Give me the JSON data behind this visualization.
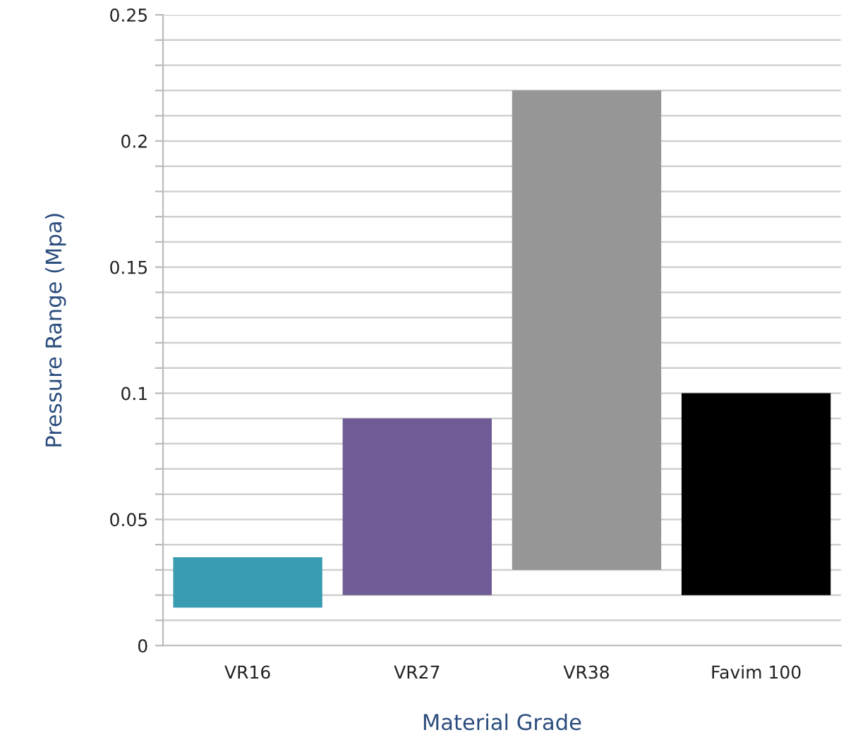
{
  "chart_data": {
    "type": "bar",
    "xlabel": "Material Grade",
    "ylabel": "Pressure Range (Mpa)",
    "categories": [
      "VR16",
      "VR27",
      "VR38",
      "Favim 100"
    ],
    "values": [
      0.02,
      0.07,
      0.19,
      0.08
    ],
    "base": [
      0.015,
      0.02,
      0.03,
      0.02
    ],
    "colors": [
      "#3a9cb2",
      "#6f5c96",
      "#969696",
      "#000000"
    ],
    "ylim": [
      0,
      0.25
    ],
    "yticks": [
      0,
      {
        "value": 0.01,
        "label": null
      },
      {
        "value": 0.02,
        "label": null
      },
      {
        "value": 0.03,
        "label": null
      },
      {
        "value": 0.04,
        "label": null
      },
      0.05,
      {
        "value": 0.06,
        "label": null
      },
      {
        "value": 0.07,
        "label": null
      },
      {
        "value": 0.08,
        "label": null
      },
      {
        "value": 0.09,
        "label": null
      },
      0.1,
      {
        "value": 0.11,
        "label": null
      },
      {
        "value": 0.12,
        "label": null
      },
      {
        "value": 0.13,
        "label": null
      },
      {
        "value": 0.14,
        "label": null
      },
      0.15,
      {
        "value": 0.16,
        "label": null
      },
      {
        "value": 0.17,
        "label": null
      },
      {
        "value": 0.18,
        "label": null
      },
      {
        "value": 0.19,
        "label": null
      },
      0.2,
      {
        "value": 0.21,
        "label": null
      },
      {
        "value": 0.22,
        "label": null
      },
      {
        "value": 0.23,
        "label": null
      },
      {
        "value": 0.24,
        "label": null
      },
      0.25
    ],
    "grid": "y"
  }
}
